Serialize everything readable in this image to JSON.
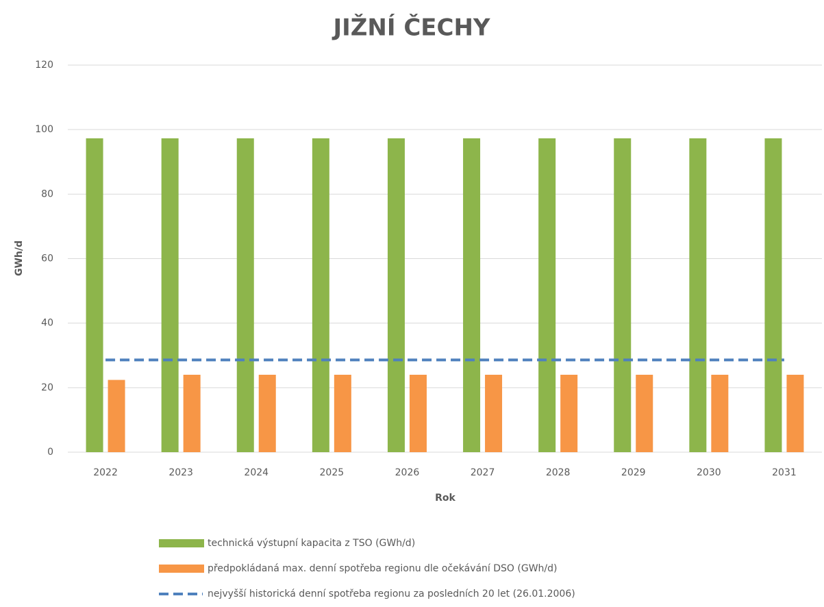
{
  "chart_data": {
    "type": "bar",
    "title": "JIŽNÍ ČECHY",
    "y_label": "GWh/d",
    "x_label": "Rok",
    "categories": [
      "2022",
      "2023",
      "2024",
      "2025",
      "2026",
      "2027",
      "2028",
      "2029",
      "2030",
      "2031"
    ],
    "series": [
      {
        "name": "technická výstupní kapacita z TSO (GWh/d)",
        "color": "#8db54b",
        "values": [
          97.3,
          97.3,
          97.3,
          97.3,
          97.3,
          97.3,
          97.3,
          97.3,
          97.3,
          97.3
        ]
      },
      {
        "name": "předpokládaná max. denní spotřeba regionu dle očekávání DSO (GWh/d)",
        "color": "#f79646",
        "values": [
          22.4,
          24,
          24,
          24,
          24,
          24,
          24,
          24,
          24,
          24
        ]
      },
      {
        "name": "nejvyšší historická denní spotřeba regionu za posledních 20 let (26.01.2006)",
        "color": "#4f81bd",
        "type": "line",
        "dashed": true,
        "values": [
          28.6,
          28.6,
          28.6,
          28.6,
          28.6,
          28.6,
          28.6,
          28.6,
          28.6,
          28.6
        ]
      }
    ],
    "ylim": [
      0,
      120
    ],
    "yticks": [
      0,
      20,
      40,
      60,
      80,
      100,
      120
    ],
    "grid": true
  }
}
